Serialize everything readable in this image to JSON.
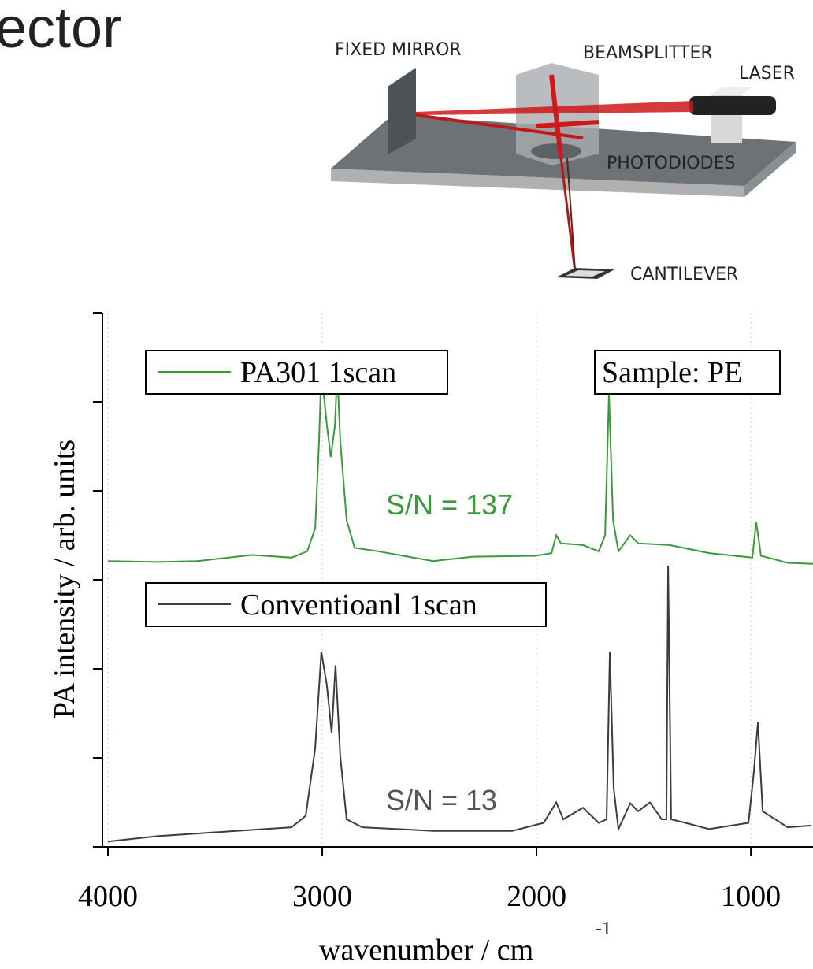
{
  "slide_title": "ector",
  "diagram": {
    "labels": [
      "FIXED MIRROR",
      "BEAMSPLITTER",
      "LASER",
      "PHOTODIODES",
      "CANTILEVER"
    ]
  },
  "chart_data": {
    "type": "line",
    "ylabel": "PA intensity / arb. units",
    "xlabel": "wavenumber / cm",
    "xlabel_sup": "-1",
    "xlim": [
      4000,
      710
    ],
    "xticks": [
      4000,
      3000,
      2000,
      1000
    ],
    "ylim": [
      0,
      6
    ],
    "yticks": [
      0,
      1,
      2,
      3,
      4,
      5,
      6
    ],
    "grid": true,
    "series": [
      {
        "name": "PA301 1scan",
        "color": "#3a9a3a",
        "x": [
          4000,
          3768,
          3585,
          3327,
          3143,
          3070,
          3033,
          3015,
          3004,
          2978,
          2960,
          2941,
          2930,
          2916,
          2886,
          2849,
          2739,
          2482,
          2298,
          2004,
          1930,
          1908,
          1886,
          1783,
          1710,
          1680,
          1662,
          1643,
          1618,
          1563,
          1526,
          1379,
          1195,
          993,
          975,
          953,
          828,
          710
        ],
        "values": [
          3.21,
          3.2,
          3.21,
          3.28,
          3.25,
          3.32,
          3.58,
          4.56,
          5.35,
          4.73,
          4.38,
          4.73,
          5.35,
          4.56,
          3.67,
          3.36,
          3.32,
          3.21,
          3.26,
          3.27,
          3.3,
          3.5,
          3.41,
          3.39,
          3.32,
          3.5,
          5.09,
          3.67,
          3.32,
          3.5,
          3.41,
          3.39,
          3.3,
          3.25,
          3.65,
          3.27,
          3.19,
          3.18
        ]
      },
      {
        "name": "Conventioanl 1scan",
        "color": "#3c3c3c",
        "x": [
          4000,
          3768,
          3401,
          3143,
          3077,
          3033,
          3004,
          2978,
          2956,
          2938,
          2916,
          2886,
          2813,
          2482,
          2114,
          1967,
          1908,
          1875,
          1783,
          1710,
          1673,
          1658,
          1640,
          1618,
          1563,
          1526,
          1471,
          1416,
          1394,
          1386,
          1372,
          1305,
          1195,
          1011,
          986,
          967,
          945,
          828,
          717
        ],
        "values": [
          0.06,
          0.12,
          0.18,
          0.22,
          0.35,
          1.11,
          2.19,
          1.81,
          1.28,
          2.04,
          1.02,
          0.31,
          0.22,
          0.18,
          0.18,
          0.27,
          0.5,
          0.31,
          0.44,
          0.27,
          0.31,
          2.19,
          0.66,
          0.2,
          0.49,
          0.4,
          0.5,
          0.31,
          0.31,
          3.16,
          0.31,
          0.27,
          0.2,
          0.27,
          0.84,
          1.4,
          0.4,
          0.22,
          0.24
        ]
      }
    ],
    "annotations": [
      {
        "text": "S/N = 137",
        "color": "#3a9a3a"
      },
      {
        "text": "S/N = 13",
        "color": "#555555"
      },
      {
        "text": "Sample: PE",
        "color": "#000000"
      }
    ]
  }
}
